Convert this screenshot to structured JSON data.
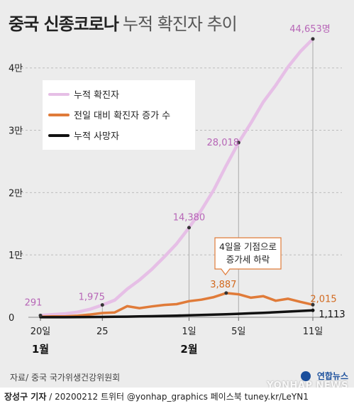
{
  "title": {
    "main": "중국 신종코로나",
    "sub": "누적 확진자 추이"
  },
  "source": "자료/ 중국 국가위생건강위원회",
  "footer": {
    "reporter": "장성구 기자",
    "info": " / 20200212  트위터 @yonhap_graphics  페이스북 tuney.kr/LeYN1"
  },
  "logo": {
    "text": "연합뉴스",
    "watermark": "YONHAP NEWS"
  },
  "colors": {
    "confirmed": "#e6bfe6",
    "daily": "#e07b39",
    "deaths": "#111111",
    "confirmed_label": "#b766b7",
    "daily_label": "#d2691e",
    "grid": "#bdbdbd"
  },
  "chart_data": {
    "type": "line",
    "x": [
      "1/20",
      "1/21",
      "1/22",
      "1/23",
      "1/24",
      "1/25",
      "1/26",
      "1/27",
      "1/28",
      "1/29",
      "1/30",
      "1/31",
      "2/1",
      "2/2",
      "2/3",
      "2/4",
      "2/5",
      "2/6",
      "2/7",
      "2/8",
      "2/9",
      "2/10",
      "2/11"
    ],
    "series": [
      {
        "name": "누적 확진자",
        "key": "confirmed",
        "values": [
          291,
          440,
          571,
          830,
          1287,
          1975,
          2744,
          4515,
          5974,
          7711,
          9692,
          11791,
          14380,
          17205,
          20438,
          24324,
          28018,
          31161,
          34546,
          37198,
          40171,
          42638,
          44653
        ]
      },
      {
        "name": "전일 대비 확진자 증가 수",
        "key": "daily",
        "values": [
          77,
          149,
          131,
          259,
          444,
          688,
          769,
          1771,
          1459,
          1737,
          1982,
          2102,
          2590,
          2829,
          3235,
          3887,
          3694,
          3143,
          3385,
          2652,
          2973,
          2467,
          2015
        ]
      },
      {
        "name": "누적 사망자",
        "key": "deaths",
        "values": [
          6,
          9,
          17,
          25,
          41,
          56,
          80,
          106,
          132,
          170,
          213,
          259,
          304,
          361,
          425,
          490,
          563,
          636,
          722,
          811,
          908,
          1016,
          1113
        ]
      }
    ],
    "ylim": [
      0,
      46000
    ],
    "y_ticks": [
      {
        "value": 0,
        "label": "0"
      },
      {
        "value": 10000,
        "label": "1만"
      },
      {
        "value": 20000,
        "label": "2만"
      },
      {
        "value": 30000,
        "label": "3만"
      },
      {
        "value": 40000,
        "label": "4만"
      }
    ],
    "x_ticks": [
      {
        "index": 0,
        "label": "20일",
        "month": "1월"
      },
      {
        "index": 5,
        "label": "25"
      },
      {
        "index": 12,
        "label": "1일",
        "month": "2월"
      },
      {
        "index": 16,
        "label": "5일"
      },
      {
        "index": 22,
        "label": "11일"
      }
    ],
    "data_labels": [
      {
        "series": "confirmed",
        "index": 0,
        "label": "291"
      },
      {
        "series": "confirmed",
        "index": 5,
        "label": "1,975"
      },
      {
        "series": "confirmed",
        "index": 12,
        "label": "14,380"
      },
      {
        "series": "confirmed",
        "index": 16,
        "label": "28,018"
      },
      {
        "series": "confirmed",
        "index": 22,
        "label": "44,653명"
      },
      {
        "series": "daily",
        "index": 15,
        "label": "3,887"
      },
      {
        "series": "daily",
        "index": 22,
        "label": "2,015"
      },
      {
        "series": "deaths",
        "index": 22,
        "label": "1,113"
      }
    ],
    "annotation": {
      "lines": [
        "4일을 기점으로",
        "증가세 하락"
      ],
      "index": 15
    },
    "legend_position": "top-left",
    "grid": "horizontal-dashed"
  }
}
